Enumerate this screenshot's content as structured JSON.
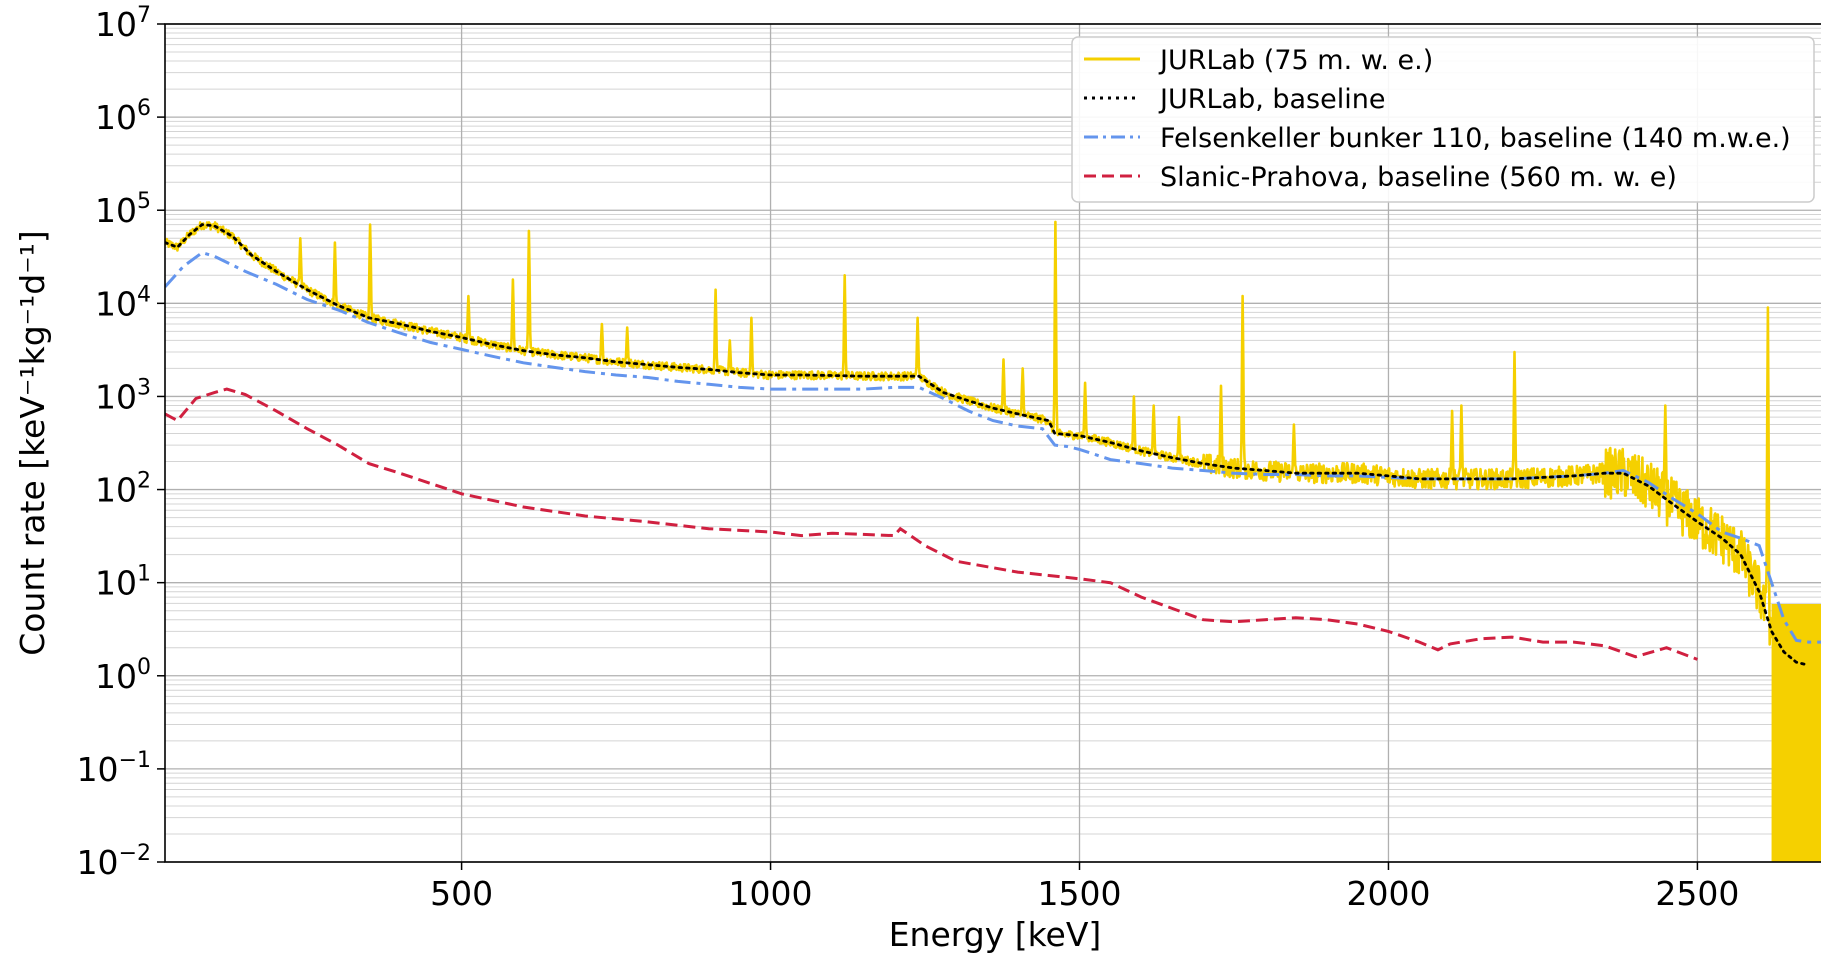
{
  "chart_data": {
    "type": "line",
    "xlabel": "Energy [keV]",
    "ylabel": "Count rate [keV⁻¹kg⁻¹d⁻¹]",
    "xlim": [
      20,
      2700
    ],
    "ylim": [
      0.01,
      10000000
    ],
    "y_scale": "log",
    "grid": "major and minor",
    "legend_position": "top-right",
    "x_ticks": [
      500,
      1000,
      1500,
      2000,
      2500
    ],
    "x_tick_labels": [
      "500",
      "1000",
      "1500",
      "2000",
      "2500"
    ],
    "y_ticks": [
      0.01,
      0.1,
      1,
      10,
      100,
      1000,
      10000,
      100000,
      1000000,
      10000000
    ],
    "y_tick_bases": [
      "10",
      "10",
      "10",
      "10",
      "10",
      "10",
      "10",
      "10",
      "10",
      "10"
    ],
    "y_tick_exponents": [
      "−2",
      "−1",
      "0",
      "1",
      "2",
      "3",
      "4",
      "5",
      "6",
      "7"
    ],
    "series": [
      {
        "name": "JURLab (75 m. w. e.)",
        "style": "solid",
        "color": "#f5d000",
        "baseline_x": [
          20,
          40,
          60,
          80,
          100,
          130,
          160,
          200,
          250,
          300,
          350,
          400,
          450,
          500,
          550,
          600,
          650,
          700,
          750,
          800,
          850,
          900,
          950,
          1000,
          1050,
          1100,
          1150,
          1200,
          1240,
          1280,
          1320,
          1360,
          1400,
          1450,
          1460,
          1500,
          1550,
          1600,
          1650,
          1700,
          1750,
          1800,
          1850,
          1900,
          1950,
          2000,
          2050,
          2100,
          2150,
          2200,
          2250,
          2300,
          2350,
          2380,
          2420,
          2460,
          2500,
          2540,
          2570,
          2600,
          2620
        ],
        "baseline_y": [
          45000,
          40000,
          55000,
          70000,
          68000,
          52000,
          33000,
          22000,
          14000,
          9500,
          7000,
          6000,
          5000,
          4300,
          3600,
          3100,
          2800,
          2600,
          2350,
          2200,
          2050,
          1950,
          1800,
          1700,
          1700,
          1680,
          1650,
          1650,
          1650,
          1100,
          900,
          750,
          650,
          550,
          400,
          380,
          320,
          260,
          220,
          190,
          170,
          160,
          150,
          150,
          150,
          140,
          130,
          130,
          130,
          130,
          135,
          140,
          150,
          150,
          110,
          70,
          45,
          30,
          20,
          8,
          3
        ],
        "peaks": [
          {
            "x": 239,
            "y": 50000
          },
          {
            "x": 295,
            "y": 45000
          },
          {
            "x": 352,
            "y": 70000
          },
          {
            "x": 511,
            "y": 12000
          },
          {
            "x": 583,
            "y": 18000
          },
          {
            "x": 609,
            "y": 60000
          },
          {
            "x": 727,
            "y": 6000
          },
          {
            "x": 768,
            "y": 5500
          },
          {
            "x": 911,
            "y": 14000
          },
          {
            "x": 934,
            "y": 4000
          },
          {
            "x": 969,
            "y": 7000
          },
          {
            "x": 1120,
            "y": 20000
          },
          {
            "x": 1238,
            "y": 7000
          },
          {
            "x": 1377,
            "y": 2500
          },
          {
            "x": 1408,
            "y": 2000
          },
          {
            "x": 1461,
            "y": 75000
          },
          {
            "x": 1509,
            "y": 1400
          },
          {
            "x": 1588,
            "y": 1000
          },
          {
            "x": 1620,
            "y": 800
          },
          {
            "x": 1661,
            "y": 600
          },
          {
            "x": 1729,
            "y": 1300
          },
          {
            "x": 1764,
            "y": 12000
          },
          {
            "x": 1847,
            "y": 500
          },
          {
            "x": 2103,
            "y": 700
          },
          {
            "x": 2118,
            "y": 800
          },
          {
            "x": 2204,
            "y": 3000
          },
          {
            "x": 2448,
            "y": 800
          },
          {
            "x": 2614,
            "y": 9000
          }
        ],
        "low_edge": {
          "x_from": 2620,
          "x_to": 2700,
          "y": 0.01
        }
      },
      {
        "name": "JURLab, baseline",
        "style": "dotted",
        "color": "#000000",
        "x": [
          20,
          40,
          60,
          80,
          100,
          130,
          160,
          200,
          250,
          300,
          350,
          400,
          450,
          500,
          550,
          600,
          650,
          700,
          750,
          800,
          850,
          900,
          950,
          1000,
          1050,
          1100,
          1150,
          1200,
          1240,
          1280,
          1320,
          1360,
          1400,
          1450,
          1460,
          1500,
          1550,
          1600,
          1650,
          1700,
          1750,
          1800,
          1850,
          1900,
          1950,
          2000,
          2050,
          2100,
          2150,
          2200,
          2250,
          2300,
          2350,
          2380,
          2420,
          2460,
          2500,
          2540,
          2570,
          2600,
          2620,
          2640,
          2660,
          2680
        ],
        "y": [
          45000,
          40000,
          55000,
          70000,
          68000,
          52000,
          33000,
          22000,
          14000,
          9500,
          7000,
          6000,
          5000,
          4300,
          3600,
          3100,
          2800,
          2600,
          2350,
          2200,
          2050,
          1950,
          1800,
          1700,
          1700,
          1680,
          1650,
          1650,
          1650,
          1100,
          900,
          750,
          650,
          550,
          400,
          380,
          320,
          260,
          220,
          190,
          170,
          160,
          150,
          150,
          150,
          140,
          130,
          130,
          130,
          130,
          135,
          140,
          150,
          150,
          110,
          70,
          45,
          30,
          20,
          8,
          3,
          1.8,
          1.4,
          1.3
        ]
      },
      {
        "name": "Felsenkeller bunker 110, baseline (140 m.w.e.)",
        "style": "dashdot",
        "color": "#6495ed",
        "x": [
          20,
          50,
          80,
          100,
          150,
          200,
          250,
          300,
          350,
          400,
          450,
          500,
          550,
          600,
          650,
          700,
          750,
          800,
          850,
          900,
          950,
          1000,
          1050,
          1100,
          1150,
          1200,
          1240,
          1280,
          1320,
          1360,
          1400,
          1440,
          1460,
          1480,
          1500,
          1550,
          1600,
          1650,
          1700,
          1750,
          1800,
          1850,
          1900,
          1950,
          2000,
          2050,
          2100,
          2150,
          2200,
          2250,
          2300,
          2350,
          2380,
          2420,
          2460,
          2500,
          2540,
          2570,
          2600,
          2620,
          2640,
          2660,
          2680,
          2700
        ],
        "y": [
          15000,
          25000,
          35000,
          32000,
          22000,
          16000,
          11000,
          8500,
          6200,
          4800,
          3800,
          3200,
          2700,
          2300,
          2050,
          1850,
          1700,
          1600,
          1450,
          1350,
          1250,
          1200,
          1200,
          1200,
          1200,
          1250,
          1250,
          950,
          700,
          550,
          480,
          450,
          300,
          290,
          270,
          210,
          190,
          170,
          160,
          150,
          145,
          145,
          140,
          140,
          135,
          130,
          130,
          130,
          130,
          135,
          140,
          150,
          160,
          120,
          80,
          55,
          35,
          30,
          25,
          10,
          4,
          2.4,
          2.3,
          2.3
        ]
      },
      {
        "name": "Slanic-Prahova, baseline (560 m. w. e)",
        "style": "dashed",
        "color": "#d02040",
        "x": [
          20,
          40,
          70,
          100,
          120,
          150,
          200,
          250,
          300,
          350,
          400,
          500,
          600,
          700,
          800,
          900,
          1000,
          1050,
          1100,
          1150,
          1200,
          1210,
          1250,
          1300,
          1400,
          1500,
          1550,
          1600,
          1700,
          1750,
          1800,
          1850,
          1900,
          1950,
          2000,
          2050,
          2080,
          2100,
          2150,
          2200,
          2250,
          2300,
          2350,
          2400,
          2450,
          2500
        ],
        "y": [
          650,
          550,
          950,
          1100,
          1200,
          1050,
          700,
          450,
          300,
          190,
          150,
          90,
          65,
          52,
          45,
          38,
          35,
          32,
          34,
          33,
          32,
          38,
          25,
          17,
          13,
          11,
          10,
          7,
          4,
          3.8,
          4,
          4.2,
          4,
          3.6,
          3,
          2.3,
          1.9,
          2.2,
          2.5,
          2.6,
          2.3,
          2.3,
          2.1,
          1.6,
          2,
          1.5
        ]
      }
    ]
  }
}
